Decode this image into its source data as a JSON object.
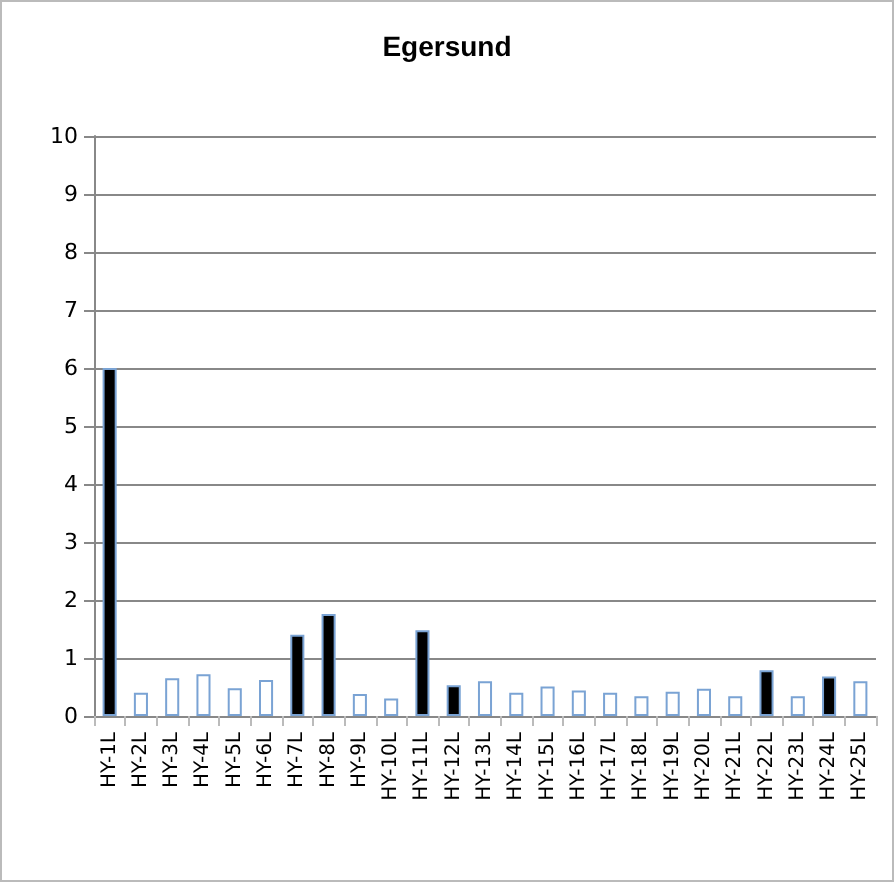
{
  "chart_data": {
    "type": "bar",
    "title": "Egersund",
    "categories": [
      "HY-1L",
      "HY-2L",
      "HY-3L",
      "HY-4L",
      "HY-5L",
      "HY-6L",
      "HY-7L",
      "HY-8L",
      "HY-9L",
      "HY-10L",
      "HY-11L",
      "HY-12L",
      "HY-13L",
      "HY-14L",
      "HY-15L",
      "HY-16L",
      "HY-17L",
      "HY-18L",
      "HY-19L",
      "HY-20L",
      "HY-21L",
      "HY-22L",
      "HY-23L",
      "HY-24L",
      "HY-25L"
    ],
    "values": [
      6,
      0.4,
      0.65,
      0.72,
      0.48,
      0.62,
      1.4,
      1.76,
      0.38,
      0.3,
      1.48,
      0.53,
      0.6,
      0.4,
      0.51,
      0.44,
      0.4,
      0.34,
      0.42,
      0.47,
      0.34,
      0.79,
      0.34,
      0.68,
      0.6
    ],
    "colors": [
      "#000000",
      "#ffffff",
      "#ffffff",
      "#ffffff",
      "#ffffff",
      "#ffffff",
      "#000000",
      "#000000",
      "#ffffff",
      "#ffffff",
      "#000000",
      "#000000",
      "#ffffff",
      "#ffffff",
      "#ffffff",
      "#ffffff",
      "#ffffff",
      "#ffffff",
      "#ffffff",
      "#ffffff",
      "#ffffff",
      "#000000",
      "#ffffff",
      "#000000",
      "#ffffff"
    ],
    "ylim": [
      0,
      10
    ],
    "yticks": [
      0,
      1,
      2,
      3,
      4,
      5,
      6,
      7,
      8,
      9,
      10
    ],
    "grid": "y"
  }
}
